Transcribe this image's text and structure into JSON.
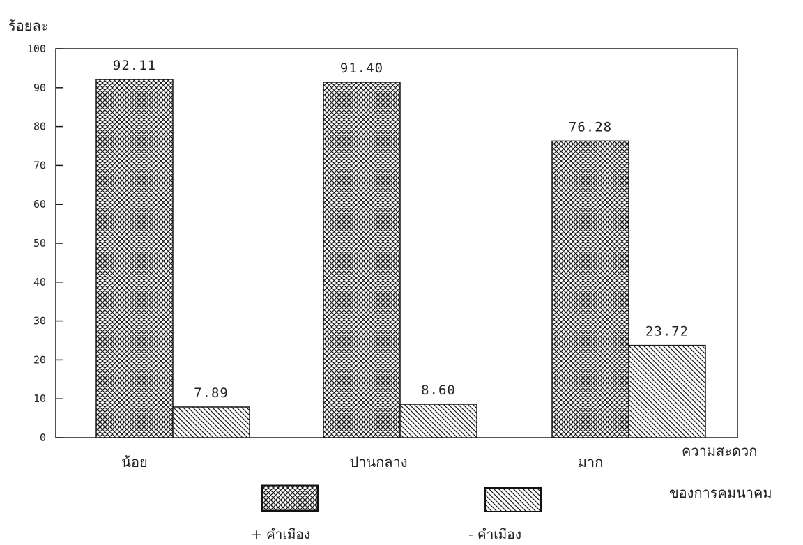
{
  "chart_data": {
    "type": "bar",
    "ylabel": "ร้อยละ",
    "xlabel_line1": "ความสะดวก",
    "xlabel_line2": "ของการคมนาคม",
    "categories": [
      "น้อย",
      "ปานกลาง",
      "มาก"
    ],
    "ylim": [
      0,
      100
    ],
    "yticks": [
      0,
      10,
      20,
      30,
      40,
      50,
      60,
      70,
      80,
      90,
      100
    ],
    "series": [
      {
        "name": "+ คำเมือง",
        "values": [
          92.11,
          91.4,
          76.28
        ],
        "labels": [
          "92.11",
          "91.40",
          "76.28"
        ],
        "pattern": "crosshatch"
      },
      {
        "name": "- คำเมือง",
        "values": [
          7.89,
          8.6,
          23.72
        ],
        "labels": [
          "7.89",
          "8.60",
          "23.72"
        ],
        "pattern": "diagonal"
      }
    ],
    "grid": false,
    "legend_position": "bottom"
  }
}
